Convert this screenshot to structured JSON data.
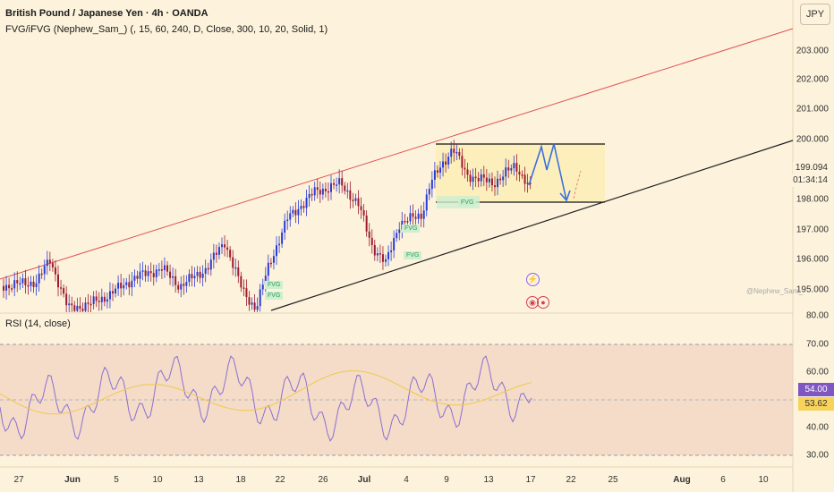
{
  "header": {
    "title": "British Pound / Japanese Yen · 4h · OANDA",
    "indicator": "FVG/iFVG (Nephew_Sam_) (, 15, 60, 240, D, Close, 300, 10, 20, Solid, 1)",
    "rsi_label": "RSI (14, close)"
  },
  "price_axis": {
    "currency": "JPY",
    "ticks": [
      "203.000",
      "202.000",
      "201.000",
      "200.000",
      "198.000",
      "197.000",
      "196.000",
      "195.000",
      "80.00"
    ],
    "current_price": "199.094",
    "countdown": "01:34:14"
  },
  "rsi_axis": {
    "ticks": [
      "70.00",
      "60.00",
      "40.00",
      "30.00"
    ],
    "rsi_value": "54.00",
    "ma_value": "53.62"
  },
  "time_axis": [
    "27",
    "Jun",
    "5",
    "10",
    "13",
    "18",
    "22",
    "26",
    "Jul",
    "4",
    "9",
    "13",
    "17",
    "22",
    "25",
    "Aug",
    "6",
    "10"
  ],
  "fvg_labels": [
    "FVG",
    "FVG",
    "FVG",
    "FVG",
    "FVG"
  ],
  "watermark": "@Nephew_Sam_",
  "colors": {
    "background": "#fdf3dc",
    "bull": "#2a3bd6",
    "bear": "#9e1b2f",
    "resistance_line": "#e05252",
    "support_line": "#222222",
    "rsi_line": "#8b6fd1",
    "rsi_ma": "#f2c84b",
    "rsi_badge": "#7e57c2",
    "ma_badge": "#f7d35a",
    "projection": "#3a6fe0"
  },
  "chart_data": {
    "type": "candlestick",
    "symbol": "GBPJPY",
    "timeframe": "4h",
    "price_range": [
      194.0,
      204.0
    ],
    "rsi_range": [
      27,
      82
    ]
  }
}
